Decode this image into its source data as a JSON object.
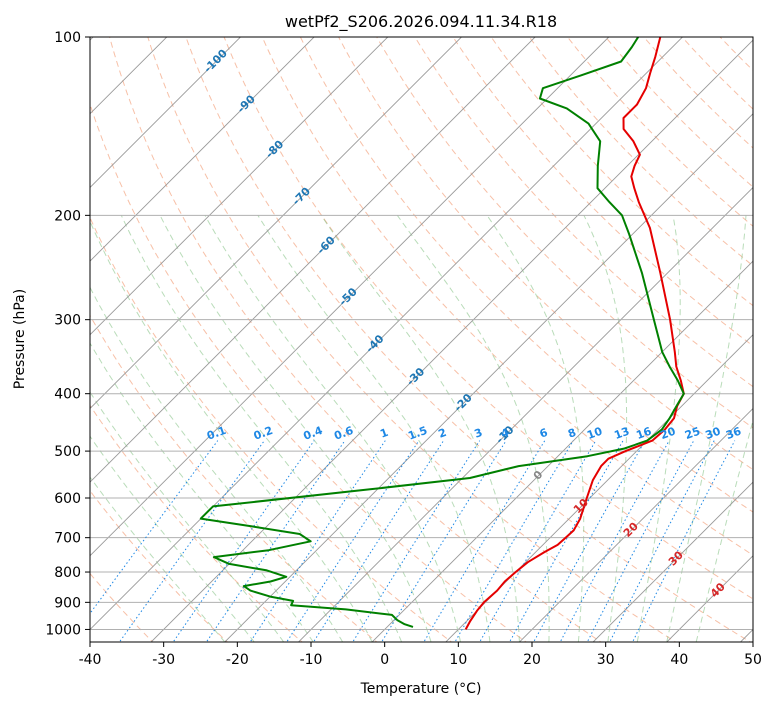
{
  "chart_data": {
    "type": "skew-t",
    "title": "wetPf2_S206.2026.094.11.34.R18",
    "xlabel": "Temperature (°C)",
    "ylabel": "Pressure (hPa)",
    "xlim": [
      -40,
      50
    ],
    "ylim": [
      1050,
      100
    ],
    "x_ticks": [
      -40,
      -30,
      -20,
      -10,
      0,
      10,
      20,
      30,
      40,
      50
    ],
    "y_ticks": [
      1000,
      900,
      800,
      700,
      600,
      500,
      400,
      300,
      200,
      100
    ],
    "grid": true,
    "skew_factor": 35,
    "isotherm_labels": {
      "values": [
        -100,
        -90,
        -80,
        -70,
        -60,
        -50,
        -40,
        -30,
        -20,
        -10,
        0,
        10,
        20,
        30,
        40
      ],
      "pressures": [
        110,
        130,
        155,
        186,
        225,
        275,
        330,
        375,
        415,
        470,
        550,
        620,
        680,
        760,
        860
      ],
      "colors": {
        "cold": "#1f77b4",
        "zero": "#888888",
        "warm": "#d62728"
      }
    },
    "mixing_ratio_labels": {
      "values": [
        "0.1",
        "0.2",
        "0.4",
        "0.6",
        "1",
        "1.5",
        "2",
        "3",
        "4",
        "6",
        "8",
        "10",
        "13",
        "16",
        "20",
        "25",
        "30",
        "36"
      ],
      "g_per_kg": [
        0.1,
        0.2,
        0.4,
        0.6,
        1,
        1.5,
        2,
        3,
        4,
        6,
        8,
        10,
        13,
        16,
        20,
        25,
        30,
        36
      ],
      "label_pressure": 480,
      "color": "#1e88e5"
    },
    "series": [
      {
        "name": "temperature",
        "color": "#e50000",
        "points": [
          {
            "p": 1000,
            "t": 11.0
          },
          {
            "p": 970,
            "t": 10.5
          },
          {
            "p": 930,
            "t": 10.0
          },
          {
            "p": 900,
            "t": 9.8
          },
          {
            "p": 860,
            "t": 10.0
          },
          {
            "p": 830,
            "t": 9.8
          },
          {
            "p": 800,
            "t": 10.0
          },
          {
            "p": 770,
            "t": 10.3
          },
          {
            "p": 740,
            "t": 11.2
          },
          {
            "p": 720,
            "t": 12.0
          },
          {
            "p": 700,
            "t": 12.1
          },
          {
            "p": 680,
            "t": 12.2
          },
          {
            "p": 650,
            "t": 11.5
          },
          {
            "p": 600,
            "t": 9.6
          },
          {
            "p": 560,
            "t": 8.0
          },
          {
            "p": 530,
            "t": 7.2
          },
          {
            "p": 515,
            "t": 7.2
          },
          {
            "p": 500,
            "t": 8.5
          },
          {
            "p": 480,
            "t": 10.7
          },
          {
            "p": 460,
            "t": 10.9
          },
          {
            "p": 440,
            "t": 10.6
          },
          {
            "p": 420,
            "t": 9.4
          },
          {
            "p": 400,
            "t": 8.6
          },
          {
            "p": 380,
            "t": 6.4
          },
          {
            "p": 360,
            "t": 3.9
          },
          {
            "p": 340,
            "t": 1.7
          },
          {
            "p": 300,
            "t": -3.3
          },
          {
            "p": 250,
            "t": -11.0
          },
          {
            "p": 210,
            "t": -18.5
          },
          {
            "p": 190,
            "t": -23.5
          },
          {
            "p": 180,
            "t": -26.0
          },
          {
            "p": 172,
            "t": -28.0
          },
          {
            "p": 165,
            "t": -29.0
          },
          {
            "p": 158,
            "t": -29.8
          },
          {
            "p": 150,
            "t": -32.5
          },
          {
            "p": 143,
            "t": -35.5
          },
          {
            "p": 137,
            "t": -37.0
          },
          {
            "p": 130,
            "t": -37.0
          },
          {
            "p": 122,
            "t": -38.0
          },
          {
            "p": 115,
            "t": -39.5
          },
          {
            "p": 108,
            "t": -41.0
          },
          {
            "p": 100,
            "t": -43.0
          }
        ]
      },
      {
        "name": "dewpoint",
        "color": "#008000",
        "points": [
          {
            "p": 990,
            "t": 3.5
          },
          {
            "p": 980,
            "t": 2.0
          },
          {
            "p": 965,
            "t": 0.5
          },
          {
            "p": 945,
            "t": -1.0
          },
          {
            "p": 925,
            "t": -8.0
          },
          {
            "p": 910,
            "t": -16.0
          },
          {
            "p": 895,
            "t": -16.3
          },
          {
            "p": 880,
            "t": -20.0
          },
          {
            "p": 860,
            "t": -23.5
          },
          {
            "p": 845,
            "t": -25.0
          },
          {
            "p": 830,
            "t": -22.0
          },
          {
            "p": 815,
            "t": -20.5
          },
          {
            "p": 795,
            "t": -24.0
          },
          {
            "p": 775,
            "t": -30.0
          },
          {
            "p": 755,
            "t": -33.0
          },
          {
            "p": 735,
            "t": -26.5
          },
          {
            "p": 710,
            "t": -22.0
          },
          {
            "p": 690,
            "t": -24.5
          },
          {
            "p": 670,
            "t": -32.0
          },
          {
            "p": 650,
            "t": -40.0
          },
          {
            "p": 620,
            "t": -40.0
          },
          {
            "p": 580,
            "t": -21.0
          },
          {
            "p": 555,
            "t": -9.0
          },
          {
            "p": 530,
            "t": -4.0
          },
          {
            "p": 510,
            "t": 4.0
          },
          {
            "p": 495,
            "t": 8.0
          },
          {
            "p": 480,
            "t": 10.0
          },
          {
            "p": 460,
            "t": 10.5
          },
          {
            "p": 440,
            "t": 10.0
          },
          {
            "p": 420,
            "t": 9.3
          },
          {
            "p": 400,
            "t": 8.6
          },
          {
            "p": 380,
            "t": 6.0
          },
          {
            "p": 360,
            "t": 3.0
          },
          {
            "p": 340,
            "t": 0.0
          },
          {
            "p": 300,
            "t": -5.5
          },
          {
            "p": 250,
            "t": -13.5
          },
          {
            "p": 215,
            "t": -20.5
          },
          {
            "p": 200,
            "t": -24.0
          },
          {
            "p": 190,
            "t": -27.5
          },
          {
            "p": 180,
            "t": -31.0
          },
          {
            "p": 165,
            "t": -34.0
          },
          {
            "p": 150,
            "t": -37.0
          },
          {
            "p": 140,
            "t": -41.0
          },
          {
            "p": 132,
            "t": -46.0
          },
          {
            "p": 127,
            "t": -51.0
          },
          {
            "p": 122,
            "t": -52.0
          },
          {
            "p": 116,
            "t": -48.5
          },
          {
            "p": 110,
            "t": -45.0
          },
          {
            "p": 104,
            "t": -45.5
          },
          {
            "p": 100,
            "t": -46.0
          }
        ]
      }
    ]
  }
}
